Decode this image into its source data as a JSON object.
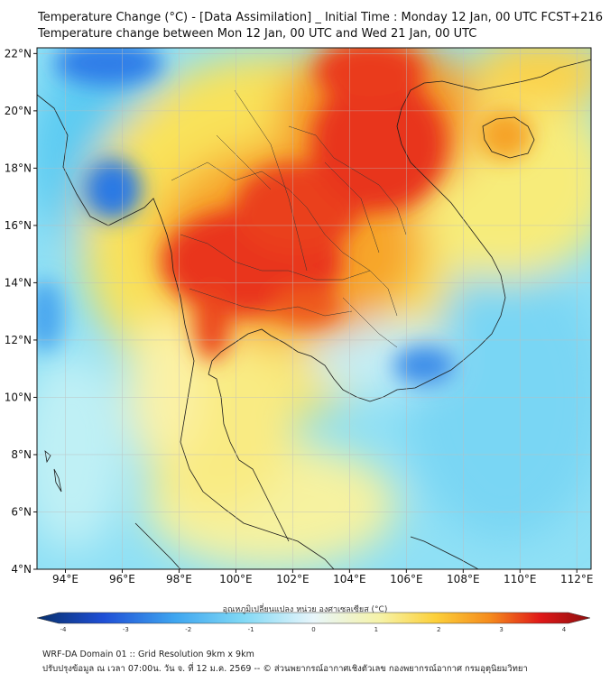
{
  "header": {
    "title_line1": "Temperature Change (°C) - [Data Assimilation] _ Initial Time : Monday 12 Jan, 00 UTC FCST+216",
    "title_line2": "Temperature change between Mon 12 Jan, 00 UTC and Wed 21 Jan, 00 UTC"
  },
  "map": {
    "lat_labels": [
      "22°N",
      "20°N",
      "18°N",
      "16°N",
      "14°N",
      "12°N",
      "10°N",
      "8°N",
      "6°N",
      "4°N"
    ],
    "lon_labels": [
      "94°E",
      "96°E",
      "98°E",
      "100°E",
      "102°E",
      "104°E",
      "106°E",
      "108°E",
      "110°E",
      "112°E"
    ],
    "lat_range": [
      4,
      22.2
    ],
    "lon_range": [
      93,
      112.5
    ],
    "variable": "temperature change",
    "units": "°C"
  },
  "colorbar": {
    "label": "อุณหภูมิเปลี่ยนแปลง หน่วย องศาเซลเซียส (°C)",
    "ticks": [
      "-4",
      "-3",
      "-2",
      "-1",
      "0",
      "1",
      "2",
      "3",
      "4"
    ],
    "range": [
      -4,
      4
    ],
    "colors": [
      "#08306b",
      "#1f4fd6",
      "#3fa6f0",
      "#7fd8f5",
      "#e8f6fb",
      "#f6f3a8",
      "#fcd03a",
      "#f58a1c",
      "#e01818",
      "#8c0f0f"
    ]
  },
  "footer": {
    "line1": "WRF-DA Domain 01 :: Grid Resolution 9km x 9km",
    "line2": "ปรับปรุงข้อมูล ณ เวลา 07:00น. วัน จ. ที่ 12 ม.ค. 2569 -- © ส่วนพยากรณ์อากาศเชิงตัวเลข กองพยากรณ์อากาศ กรมอุตุนิยมวิทยา"
  }
}
